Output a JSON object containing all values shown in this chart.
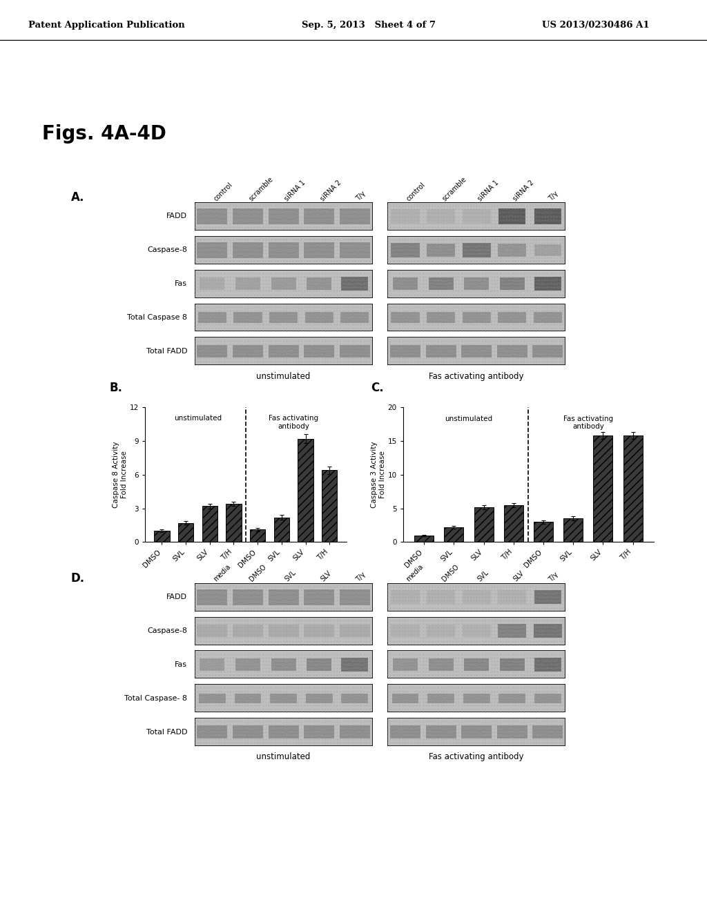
{
  "title_header_left": "Patent Application Publication",
  "title_header_mid": "Sep. 5, 2013   Sheet 4 of 7",
  "title_header_right": "US 2013/0230486 A1",
  "fig_label": "Figs. 4A-4D",
  "panel_A_label": "A.",
  "panel_B_label": "B.",
  "panel_C_label": "C.",
  "panel_D_label": "D.",
  "blot_rows_A": [
    "FADD",
    "Caspase-8",
    "Fas",
    "Total Caspase 8",
    "Total FADD"
  ],
  "blot_cols_A_left": [
    "control",
    "scramble",
    "siRNA 1",
    "siRNA 2",
    "T/γ"
  ],
  "blot_cols_A_right": [
    "control",
    "scramble",
    "siRNA 1",
    "siRNA 2",
    "T/γ"
  ],
  "label_unstimulated_A": "unstimulated",
  "label_fas_A": "Fas activating antibody",
  "bar_B_categories": [
    "DMSO",
    "SVL",
    "SLV",
    "T/H",
    "DMSO",
    "SVL",
    "SLV",
    "T/H"
  ],
  "bar_B_values": [
    1.0,
    1.7,
    3.2,
    3.4,
    1.1,
    2.2,
    9.2,
    6.4
  ],
  "bar_B_errors": [
    0.1,
    0.15,
    0.2,
    0.2,
    0.15,
    0.2,
    0.4,
    0.35
  ],
  "bar_B_ylabel": "Caspase 8 Activity\nFold Increase",
  "bar_B_ylim": [
    0,
    12
  ],
  "bar_B_yticks": [
    0,
    3,
    6,
    9,
    12
  ],
  "bar_B_label_left": "unstimulated",
  "bar_B_label_right": "Fas activating\nantibody",
  "bar_C_categories": [
    "DMSO",
    "SVL",
    "SLV",
    "T/H",
    "DMSO",
    "SVL",
    "SLV",
    "T/H"
  ],
  "bar_C_values": [
    1.0,
    2.2,
    5.2,
    5.5,
    3.0,
    3.5,
    15.8,
    15.8
  ],
  "bar_C_errors": [
    0.1,
    0.2,
    0.3,
    0.3,
    0.25,
    0.3,
    0.5,
    0.5
  ],
  "bar_C_ylabel": "Caspase 3 Activity\nFold Increase",
  "bar_C_ylim": [
    0,
    20
  ],
  "bar_C_yticks": [
    0,
    5,
    10,
    15,
    20
  ],
  "bar_C_label_left": "unstimulated",
  "bar_C_label_right": "Fas activating\nantibody",
  "blot_rows_D": [
    "FADD",
    "Caspase-8",
    "Fas",
    "Total Caspase- 8",
    "Total FADD"
  ],
  "blot_cols_D_left": [
    "media",
    "DMSO",
    "SVL",
    "SLV",
    "T/γ"
  ],
  "blot_cols_D_right": [
    "media",
    "DMSO",
    "SVL",
    "SLV",
    "T/γ"
  ],
  "label_unstimulated_D": "unstimulated",
  "label_fas_D": "Fas activating antibody",
  "bg_color": "#ffffff",
  "bar_hatch": "///",
  "bar_color": "#404040"
}
